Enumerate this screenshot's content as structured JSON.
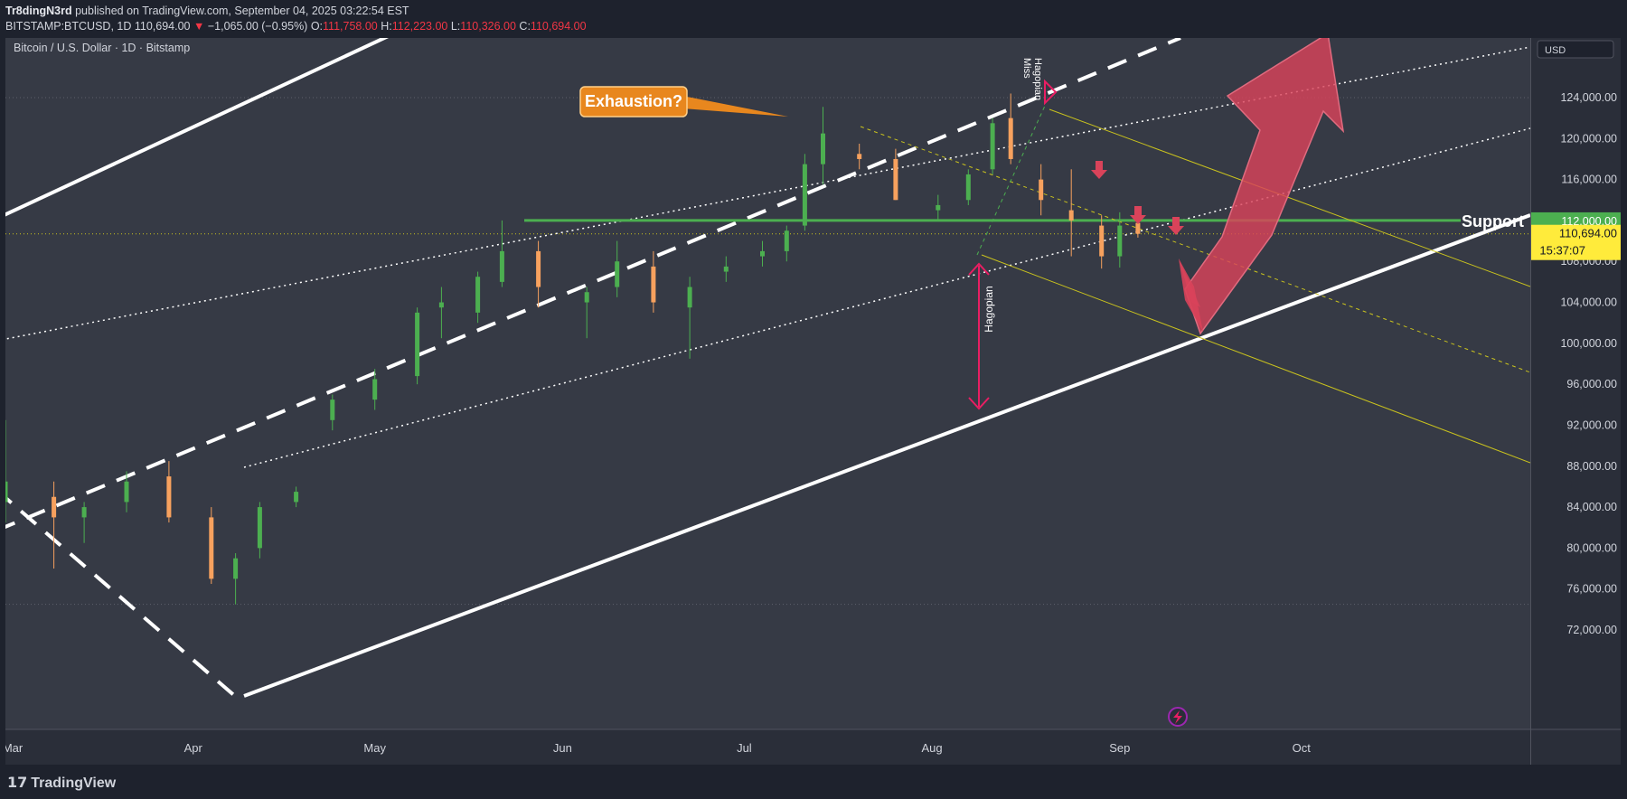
{
  "header": {
    "author": "Tr8dingN3rd",
    "published": "published on TradingView.com, September 04, 2025 03:22:54 EST",
    "symbol_line": "BITSTAMP:BTCUSD, 1D",
    "last": "110,694.00",
    "change": "−1,065.00 (−0.95%)",
    "open_label": "O:",
    "open": "111,758.00",
    "high_label": "H:",
    "high": "112,223.00",
    "low_label": "L:",
    "low": "110,326.00",
    "close_label": "C:",
    "close": "110,694.00"
  },
  "chart_title": "Bitcoin / U.S. Dollar · 1D · Bitstamp",
  "currency_label": "USD",
  "price_tag": {
    "price": "110,694.00",
    "countdown": "15:37:07"
  },
  "support_tag": "112,000.00",
  "annotations": {
    "exhaustion": "Exhaustion?",
    "support": "Support",
    "hagopian_vertical": "Hagopian",
    "hagopian_miss": "Hagopian Miss"
  },
  "footer": {
    "brand": "TradingView",
    "logo_glyph": "17"
  },
  "colors": {
    "background": "#363a45",
    "up": "#4caf50",
    "down": "#f7a15e",
    "support_line": "#4caf50",
    "annotation_orange": "#e8871e",
    "arrow_red": "#d9435a",
    "pitchfork_yellow": "#c9c21e",
    "hagopian_magenta": "#e91e63"
  },
  "chart_data": {
    "type": "candlestick",
    "title": "Bitcoin / U.S. Dollar · 1D · Bitstamp",
    "x_tick_labels": [
      "Mar",
      "Apr",
      "May",
      "Jun",
      "Jul",
      "Aug",
      "Sep",
      "Oct"
    ],
    "y_tick_labels": [
      "72,000.00",
      "76,000.00",
      "80,000.00",
      "84,000.00",
      "88,000.00",
      "92,000.00",
      "96,000.00",
      "100,000.00",
      "104,000.00",
      "108,000.00",
      "112,000.00",
      "116,000.00",
      "120,000.00",
      "124,000.00"
    ],
    "ylim": [
      71500,
      125500
    ],
    "x_start": "2025-03-01",
    "x_end": "2025-10-31",
    "grid": false,
    "support_level": 112000,
    "last_price": 110694,
    "series": [
      {
        "name": "BTCUSD",
        "dates": [
          "2025-03-01",
          "2025-03-09",
          "2025-03-14",
          "2025-03-21",
          "2025-03-28",
          "2025-04-04",
          "2025-04-08",
          "2025-04-12",
          "2025-04-18",
          "2025-04-24",
          "2025-05-01",
          "2025-05-08",
          "2025-05-12",
          "2025-05-18",
          "2025-05-22",
          "2025-05-28",
          "2025-06-05",
          "2025-06-10",
          "2025-06-16",
          "2025-06-22",
          "2025-06-28",
          "2025-07-04",
          "2025-07-08",
          "2025-07-11",
          "2025-07-14",
          "2025-07-20",
          "2025-07-26",
          "2025-08-02",
          "2025-08-07",
          "2025-08-11",
          "2025-08-14",
          "2025-08-19",
          "2025-08-24",
          "2025-08-29",
          "2025-09-01",
          "2025-09-04"
        ],
        "open": [
          84500,
          85000,
          83000,
          84500,
          87000,
          83000,
          77000,
          80000,
          84500,
          92500,
          94500,
          96800,
          103500,
          103000,
          106000,
          109000,
          104000,
          105500,
          107500,
          103500,
          107000,
          108500,
          109000,
          111500,
          117500,
          118500,
          118000,
          113000,
          114000,
          117000,
          122000,
          116000,
          113000,
          111500,
          108500,
          111758
        ],
        "high": [
          92500,
          86500,
          84500,
          87500,
          88500,
          84000,
          79500,
          84500,
          86000,
          95000,
          97500,
          103500,
          105500,
          107000,
          112000,
          110000,
          105500,
          110000,
          109000,
          106500,
          108500,
          110000,
          111500,
          118500,
          123100,
          119500,
          119000,
          114500,
          117000,
          122000,
          124400,
          117500,
          117000,
          112500,
          112800,
          112223
        ],
        "low": [
          82500,
          78000,
          80500,
          83500,
          82500,
          76500,
          74500,
          79000,
          84000,
          91500,
          93500,
          96000,
          100500,
          102000,
          105500,
          103500,
          100500,
          104500,
          103000,
          98500,
          106000,
          107500,
          108000,
          111000,
          115500,
          117000,
          114000,
          112000,
          113500,
          116500,
          117500,
          112500,
          108500,
          107300,
          107400,
          110326
        ],
        "close": [
          86500,
          83000,
          84000,
          86500,
          83000,
          77000,
          79000,
          84000,
          85500,
          94500,
          96500,
          103000,
          104000,
          106500,
          109000,
          105500,
          105000,
          108000,
          104000,
          105500,
          107500,
          109000,
          111000,
          117500,
          120500,
          118000,
          114000,
          113500,
          116500,
          121500,
          118000,
          114000,
          112000,
          108500,
          111500,
          110694
        ]
      }
    ]
  }
}
